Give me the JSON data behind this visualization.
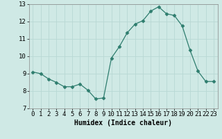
{
  "x": [
    0,
    1,
    2,
    3,
    4,
    5,
    6,
    7,
    8,
    9,
    10,
    11,
    12,
    13,
    14,
    15,
    16,
    17,
    18,
    19,
    20,
    21,
    22,
    23
  ],
  "y": [
    9.1,
    9.0,
    8.7,
    8.5,
    8.25,
    8.25,
    8.4,
    8.05,
    7.55,
    7.6,
    9.9,
    10.55,
    11.35,
    11.85,
    12.05,
    12.6,
    12.85,
    12.45,
    12.35,
    11.75,
    10.35,
    9.15,
    8.55,
    8.55
  ],
  "line_color": "#2e7d6e",
  "marker": "D",
  "marker_size": 2.5,
  "bg_color": "#cfe9e5",
  "grid_color": "#b8d8d4",
  "xlabel": "Humidex (Indice chaleur)",
  "xlim": [
    -0.5,
    23.5
  ],
  "ylim": [
    7,
    13
  ],
  "yticks": [
    7,
    8,
    9,
    10,
    11,
    12,
    13
  ],
  "xticks": [
    0,
    1,
    2,
    3,
    4,
    5,
    6,
    7,
    8,
    9,
    10,
    11,
    12,
    13,
    14,
    15,
    16,
    17,
    18,
    19,
    20,
    21,
    22,
    23
  ],
  "label_fontsize": 7,
  "tick_fontsize": 6.5
}
